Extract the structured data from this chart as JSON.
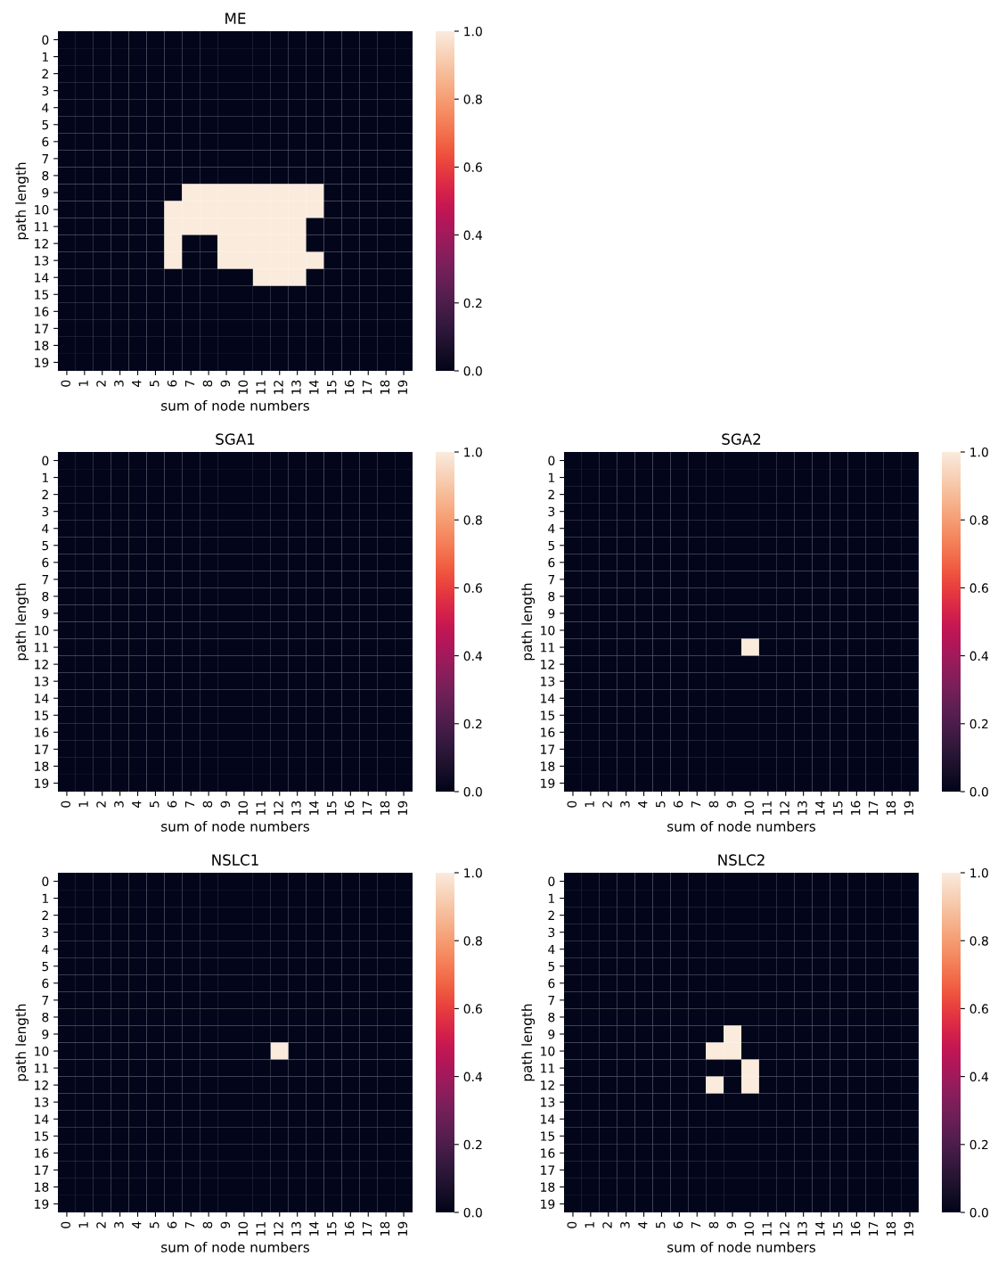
{
  "chart_data": [
    {
      "type": "heatmap",
      "title": "ME",
      "xlabel": "sum of node numbers",
      "ylabel": "path length",
      "categories": [
        "0",
        "1",
        "2",
        "3",
        "4",
        "5",
        "6",
        "7",
        "8",
        "9",
        "10",
        "11",
        "12",
        "13",
        "14",
        "15",
        "16",
        "17",
        "18",
        "19"
      ],
      "y_categories": [
        "0",
        "1",
        "2",
        "3",
        "4",
        "5",
        "6",
        "7",
        "8",
        "9",
        "10",
        "11",
        "12",
        "13",
        "14",
        "15",
        "16",
        "17",
        "18",
        "19"
      ],
      "clim": [
        0,
        1
      ],
      "cticks": [
        {
          "value": 0,
          "label": "0.0"
        },
        {
          "value": 0.2,
          "label": "0.2"
        },
        {
          "value": 0.4,
          "label": "0.4"
        },
        {
          "value": 0.6,
          "label": "0.6"
        },
        {
          "value": 0.8,
          "label": "0.8"
        },
        {
          "value": 1,
          "label": "1.0"
        }
      ],
      "cells": [
        [
          0,
          0,
          0,
          0,
          0,
          0,
          0,
          0,
          0,
          0,
          0,
          0,
          0,
          0,
          0,
          0,
          0,
          0,
          0,
          0
        ],
        [
          0,
          0,
          0,
          0,
          0,
          0,
          0,
          0,
          0,
          0,
          0,
          0,
          0,
          0,
          0,
          0,
          0,
          0,
          0,
          0
        ],
        [
          0,
          0,
          0,
          0,
          0,
          0,
          0,
          0,
          0,
          0,
          0,
          0,
          0,
          0,
          0,
          0,
          0,
          0,
          0,
          0
        ],
        [
          0,
          0,
          0,
          0,
          0,
          0,
          0,
          0,
          0,
          0,
          0,
          0,
          0,
          0,
          0,
          0,
          0,
          0,
          0,
          0
        ],
        [
          0,
          0,
          0,
          0,
          0,
          0,
          0,
          0,
          0,
          0,
          0,
          0,
          0,
          0,
          0,
          0,
          0,
          0,
          0,
          0
        ],
        [
          0,
          0,
          0,
          0,
          0,
          0,
          0,
          0,
          0,
          0,
          0,
          0,
          0,
          0,
          0,
          0,
          0,
          0,
          0,
          0
        ],
        [
          0,
          0,
          0,
          0,
          0,
          0,
          0,
          0,
          0,
          0,
          0,
          0,
          0,
          0,
          0,
          0,
          0,
          0,
          0,
          0
        ],
        [
          0,
          0,
          0,
          0,
          0,
          0,
          0,
          0,
          0,
          0,
          0,
          0,
          0,
          0,
          0,
          0,
          0,
          0,
          0,
          0
        ],
        [
          0,
          0,
          0,
          0,
          0,
          0,
          0,
          0,
          0,
          0,
          0,
          0,
          0,
          0,
          0,
          0,
          0,
          0,
          0,
          0
        ],
        [
          0,
          0,
          0,
          0,
          0,
          0,
          0,
          1,
          1,
          1,
          1,
          1,
          1,
          1,
          1,
          0,
          0,
          0,
          0,
          0
        ],
        [
          0,
          0,
          0,
          0,
          0,
          0,
          1,
          1,
          1,
          1,
          1,
          1,
          1,
          1,
          1,
          0,
          0,
          0,
          0,
          0
        ],
        [
          0,
          0,
          0,
          0,
          0,
          0,
          1,
          1,
          1,
          1,
          1,
          1,
          1,
          1,
          0,
          0,
          0,
          0,
          0,
          0
        ],
        [
          0,
          0,
          0,
          0,
          0,
          0,
          1,
          0,
          0,
          1,
          1,
          1,
          1,
          1,
          0,
          0,
          0,
          0,
          0,
          0
        ],
        [
          0,
          0,
          0,
          0,
          0,
          0,
          1,
          0,
          0,
          1,
          1,
          1,
          1,
          1,
          1,
          0,
          0,
          0,
          0,
          0
        ],
        [
          0,
          0,
          0,
          0,
          0,
          0,
          0,
          0,
          0,
          0,
          0,
          1,
          1,
          1,
          0,
          0,
          0,
          0,
          0,
          0
        ],
        [
          0,
          0,
          0,
          0,
          0,
          0,
          0,
          0,
          0,
          0,
          0,
          0,
          0,
          0,
          0,
          0,
          0,
          0,
          0,
          0
        ],
        [
          0,
          0,
          0,
          0,
          0,
          0,
          0,
          0,
          0,
          0,
          0,
          0,
          0,
          0,
          0,
          0,
          0,
          0,
          0,
          0
        ],
        [
          0,
          0,
          0,
          0,
          0,
          0,
          0,
          0,
          0,
          0,
          0,
          0,
          0,
          0,
          0,
          0,
          0,
          0,
          0,
          0
        ],
        [
          0,
          0,
          0,
          0,
          0,
          0,
          0,
          0,
          0,
          0,
          0,
          0,
          0,
          0,
          0,
          0,
          0,
          0,
          0,
          0
        ],
        [
          0,
          0,
          0,
          0,
          0,
          0,
          0,
          0,
          0,
          0,
          0,
          0,
          0,
          0,
          0,
          0,
          0,
          0,
          0,
          0
        ]
      ]
    },
    {
      "type": "heatmap",
      "title": "SGA1",
      "xlabel": "sum of node numbers",
      "ylabel": "path length",
      "categories": [
        "0",
        "1",
        "2",
        "3",
        "4",
        "5",
        "6",
        "7",
        "8",
        "9",
        "10",
        "11",
        "12",
        "13",
        "14",
        "15",
        "16",
        "17",
        "18",
        "19"
      ],
      "y_categories": [
        "0",
        "1",
        "2",
        "3",
        "4",
        "5",
        "6",
        "7",
        "8",
        "9",
        "10",
        "11",
        "12",
        "13",
        "14",
        "15",
        "16",
        "17",
        "18",
        "19"
      ],
      "clim": [
        0,
        1
      ],
      "cticks": [
        {
          "value": 0,
          "label": "0.0"
        },
        {
          "value": 0.2,
          "label": "0.2"
        },
        {
          "value": 0.4,
          "label": "0.4"
        },
        {
          "value": 0.6,
          "label": "0.6"
        },
        {
          "value": 0.8,
          "label": "0.8"
        },
        {
          "value": 1,
          "label": "1.0"
        }
      ],
      "cells": [
        [
          0,
          0,
          0,
          0,
          0,
          0,
          0,
          0,
          0,
          0,
          0,
          0,
          0,
          0,
          0,
          0,
          0,
          0,
          0,
          0
        ],
        [
          0,
          0,
          0,
          0,
          0,
          0,
          0,
          0,
          0,
          0,
          0,
          0,
          0,
          0,
          0,
          0,
          0,
          0,
          0,
          0
        ],
        [
          0,
          0,
          0,
          0,
          0,
          0,
          0,
          0,
          0,
          0,
          0,
          0,
          0,
          0,
          0,
          0,
          0,
          0,
          0,
          0
        ],
        [
          0,
          0,
          0,
          0,
          0,
          0,
          0,
          0,
          0,
          0,
          0,
          0,
          0,
          0,
          0,
          0,
          0,
          0,
          0,
          0
        ],
        [
          0,
          0,
          0,
          0,
          0,
          0,
          0,
          0,
          0,
          0,
          0,
          0,
          0,
          0,
          0,
          0,
          0,
          0,
          0,
          0
        ],
        [
          0,
          0,
          0,
          0,
          0,
          0,
          0,
          0,
          0,
          0,
          0,
          0,
          0,
          0,
          0,
          0,
          0,
          0,
          0,
          0
        ],
        [
          0,
          0,
          0,
          0,
          0,
          0,
          0,
          0,
          0,
          0,
          0,
          0,
          0,
          0,
          0,
          0,
          0,
          0,
          0,
          0
        ],
        [
          0,
          0,
          0,
          0,
          0,
          0,
          0,
          0,
          0,
          0,
          0,
          0,
          0,
          0,
          0,
          0,
          0,
          0,
          0,
          0
        ],
        [
          0,
          0,
          0,
          0,
          0,
          0,
          0,
          0,
          0,
          0,
          0,
          0,
          0,
          0,
          0,
          0,
          0,
          0,
          0,
          0
        ],
        [
          0,
          0,
          0,
          0,
          0,
          0,
          0,
          0,
          0,
          0,
          0,
          0,
          0,
          0,
          0,
          0,
          0,
          0,
          0,
          0
        ],
        [
          0,
          0,
          0,
          0,
          0,
          0,
          0,
          0,
          0,
          0,
          0,
          0,
          0,
          0,
          0,
          0,
          0,
          0,
          0,
          0
        ],
        [
          0,
          0,
          0,
          0,
          0,
          0,
          0,
          0,
          0,
          0,
          0,
          0,
          0,
          0,
          0,
          0,
          0,
          0,
          0,
          0
        ],
        [
          0,
          0,
          0,
          0,
          0,
          0,
          0,
          0,
          0,
          0,
          0,
          0,
          0,
          0,
          0,
          0,
          0,
          0,
          0,
          0
        ],
        [
          0,
          0,
          0,
          0,
          0,
          0,
          0,
          0,
          0,
          0,
          0,
          0,
          0,
          0,
          0,
          0,
          0,
          0,
          0,
          0
        ],
        [
          0,
          0,
          0,
          0,
          0,
          0,
          0,
          0,
          0,
          0,
          0,
          0,
          0,
          0,
          0,
          0,
          0,
          0,
          0,
          0
        ],
        [
          0,
          0,
          0,
          0,
          0,
          0,
          0,
          0,
          0,
          0,
          0,
          0,
          0,
          0,
          0,
          0,
          0,
          0,
          0,
          0
        ],
        [
          0,
          0,
          0,
          0,
          0,
          0,
          0,
          0,
          0,
          0,
          0,
          0,
          0,
          0,
          0,
          0,
          0,
          0,
          0,
          0
        ],
        [
          0,
          0,
          0,
          0,
          0,
          0,
          0,
          0,
          0,
          0,
          0,
          0,
          0,
          0,
          0,
          0,
          0,
          0,
          0,
          0
        ],
        [
          0,
          0,
          0,
          0,
          0,
          0,
          0,
          0,
          0,
          0,
          0,
          0,
          0,
          0,
          0,
          0,
          0,
          0,
          0,
          0
        ],
        [
          0,
          0,
          0,
          0,
          0,
          0,
          0,
          0,
          0,
          0,
          0,
          0,
          0,
          0,
          0,
          0,
          0,
          0,
          0,
          0
        ]
      ]
    },
    {
      "type": "heatmap",
      "title": "SGA2",
      "xlabel": "sum of node numbers",
      "ylabel": "path length",
      "categories": [
        "0",
        "1",
        "2",
        "3",
        "4",
        "5",
        "6",
        "7",
        "8",
        "9",
        "10",
        "11",
        "12",
        "13",
        "14",
        "15",
        "16",
        "17",
        "18",
        "19"
      ],
      "y_categories": [
        "0",
        "1",
        "2",
        "3",
        "4",
        "5",
        "6",
        "7",
        "8",
        "9",
        "10",
        "11",
        "12",
        "13",
        "14",
        "15",
        "16",
        "17",
        "18",
        "19"
      ],
      "clim": [
        0,
        1
      ],
      "cticks": [
        {
          "value": 0,
          "label": "0.0"
        },
        {
          "value": 0.2,
          "label": "0.2"
        },
        {
          "value": 0.4,
          "label": "0.4"
        },
        {
          "value": 0.6,
          "label": "0.6"
        },
        {
          "value": 0.8,
          "label": "0.8"
        },
        {
          "value": 1,
          "label": "1.0"
        }
      ],
      "cells": [
        [
          0,
          0,
          0,
          0,
          0,
          0,
          0,
          0,
          0,
          0,
          0,
          0,
          0,
          0,
          0,
          0,
          0,
          0,
          0,
          0
        ],
        [
          0,
          0,
          0,
          0,
          0,
          0,
          0,
          0,
          0,
          0,
          0,
          0,
          0,
          0,
          0,
          0,
          0,
          0,
          0,
          0
        ],
        [
          0,
          0,
          0,
          0,
          0,
          0,
          0,
          0,
          0,
          0,
          0,
          0,
          0,
          0,
          0,
          0,
          0,
          0,
          0,
          0
        ],
        [
          0,
          0,
          0,
          0,
          0,
          0,
          0,
          0,
          0,
          0,
          0,
          0,
          0,
          0,
          0,
          0,
          0,
          0,
          0,
          0
        ],
        [
          0,
          0,
          0,
          0,
          0,
          0,
          0,
          0,
          0,
          0,
          0,
          0,
          0,
          0,
          0,
          0,
          0,
          0,
          0,
          0
        ],
        [
          0,
          0,
          0,
          0,
          0,
          0,
          0,
          0,
          0,
          0,
          0,
          0,
          0,
          0,
          0,
          0,
          0,
          0,
          0,
          0
        ],
        [
          0,
          0,
          0,
          0,
          0,
          0,
          0,
          0,
          0,
          0,
          0,
          0,
          0,
          0,
          0,
          0,
          0,
          0,
          0,
          0
        ],
        [
          0,
          0,
          0,
          0,
          0,
          0,
          0,
          0,
          0,
          0,
          0,
          0,
          0,
          0,
          0,
          0,
          0,
          0,
          0,
          0
        ],
        [
          0,
          0,
          0,
          0,
          0,
          0,
          0,
          0,
          0,
          0,
          0,
          0,
          0,
          0,
          0,
          0,
          0,
          0,
          0,
          0
        ],
        [
          0,
          0,
          0,
          0,
          0,
          0,
          0,
          0,
          0,
          0,
          0,
          0,
          0,
          0,
          0,
          0,
          0,
          0,
          0,
          0
        ],
        [
          0,
          0,
          0,
          0,
          0,
          0,
          0,
          0,
          0,
          0,
          0,
          0,
          0,
          0,
          0,
          0,
          0,
          0,
          0,
          0
        ],
        [
          0,
          0,
          0,
          0,
          0,
          0,
          0,
          0,
          0,
          0,
          1,
          0,
          0,
          0,
          0,
          0,
          0,
          0,
          0,
          0
        ],
        [
          0,
          0,
          0,
          0,
          0,
          0,
          0,
          0,
          0,
          0,
          0,
          0,
          0,
          0,
          0,
          0,
          0,
          0,
          0,
          0
        ],
        [
          0,
          0,
          0,
          0,
          0,
          0,
          0,
          0,
          0,
          0,
          0,
          0,
          0,
          0,
          0,
          0,
          0,
          0,
          0,
          0
        ],
        [
          0,
          0,
          0,
          0,
          0,
          0,
          0,
          0,
          0,
          0,
          0,
          0,
          0,
          0,
          0,
          0,
          0,
          0,
          0,
          0
        ],
        [
          0,
          0,
          0,
          0,
          0,
          0,
          0,
          0,
          0,
          0,
          0,
          0,
          0,
          0,
          0,
          0,
          0,
          0,
          0,
          0
        ],
        [
          0,
          0,
          0,
          0,
          0,
          0,
          0,
          0,
          0,
          0,
          0,
          0,
          0,
          0,
          0,
          0,
          0,
          0,
          0,
          0
        ],
        [
          0,
          0,
          0,
          0,
          0,
          0,
          0,
          0,
          0,
          0,
          0,
          0,
          0,
          0,
          0,
          0,
          0,
          0,
          0,
          0
        ],
        [
          0,
          0,
          0,
          0,
          0,
          0,
          0,
          0,
          0,
          0,
          0,
          0,
          0,
          0,
          0,
          0,
          0,
          0,
          0,
          0
        ],
        [
          0,
          0,
          0,
          0,
          0,
          0,
          0,
          0,
          0,
          0,
          0,
          0,
          0,
          0,
          0,
          0,
          0,
          0,
          0,
          0
        ]
      ]
    },
    {
      "type": "heatmap",
      "title": "NSLC1",
      "xlabel": "sum of node numbers",
      "ylabel": "path length",
      "categories": [
        "0",
        "1",
        "2",
        "3",
        "4",
        "5",
        "6",
        "7",
        "8",
        "9",
        "10",
        "11",
        "12",
        "13",
        "14",
        "15",
        "16",
        "17",
        "18",
        "19"
      ],
      "y_categories": [
        "0",
        "1",
        "2",
        "3",
        "4",
        "5",
        "6",
        "7",
        "8",
        "9",
        "10",
        "11",
        "12",
        "13",
        "14",
        "15",
        "16",
        "17",
        "18",
        "19"
      ],
      "clim": [
        0,
        1
      ],
      "cticks": [
        {
          "value": 0,
          "label": "0.0"
        },
        {
          "value": 0.2,
          "label": "0.2"
        },
        {
          "value": 0.4,
          "label": "0.4"
        },
        {
          "value": 0.6,
          "label": "0.6"
        },
        {
          "value": 0.8,
          "label": "0.8"
        },
        {
          "value": 1,
          "label": "1.0"
        }
      ],
      "cells": [
        [
          0,
          0,
          0,
          0,
          0,
          0,
          0,
          0,
          0,
          0,
          0,
          0,
          0,
          0,
          0,
          0,
          0,
          0,
          0,
          0
        ],
        [
          0,
          0,
          0,
          0,
          0,
          0,
          0,
          0,
          0,
          0,
          0,
          0,
          0,
          0,
          0,
          0,
          0,
          0,
          0,
          0
        ],
        [
          0,
          0,
          0,
          0,
          0,
          0,
          0,
          0,
          0,
          0,
          0,
          0,
          0,
          0,
          0,
          0,
          0,
          0,
          0,
          0
        ],
        [
          0,
          0,
          0,
          0,
          0,
          0,
          0,
          0,
          0,
          0,
          0,
          0,
          0,
          0,
          0,
          0,
          0,
          0,
          0,
          0
        ],
        [
          0,
          0,
          0,
          0,
          0,
          0,
          0,
          0,
          0,
          0,
          0,
          0,
          0,
          0,
          0,
          0,
          0,
          0,
          0,
          0
        ],
        [
          0,
          0,
          0,
          0,
          0,
          0,
          0,
          0,
          0,
          0,
          0,
          0,
          0,
          0,
          0,
          0,
          0,
          0,
          0,
          0
        ],
        [
          0,
          0,
          0,
          0,
          0,
          0,
          0,
          0,
          0,
          0,
          0,
          0,
          0,
          0,
          0,
          0,
          0,
          0,
          0,
          0
        ],
        [
          0,
          0,
          0,
          0,
          0,
          0,
          0,
          0,
          0,
          0,
          0,
          0,
          0,
          0,
          0,
          0,
          0,
          0,
          0,
          0
        ],
        [
          0,
          0,
          0,
          0,
          0,
          0,
          0,
          0,
          0,
          0,
          0,
          0,
          0,
          0,
          0,
          0,
          0,
          0,
          0,
          0
        ],
        [
          0,
          0,
          0,
          0,
          0,
          0,
          0,
          0,
          0,
          0,
          0,
          0,
          0,
          0,
          0,
          0,
          0,
          0,
          0,
          0
        ],
        [
          0,
          0,
          0,
          0,
          0,
          0,
          0,
          0,
          0,
          0,
          0,
          0,
          1,
          0,
          0,
          0,
          0,
          0,
          0,
          0
        ],
        [
          0,
          0,
          0,
          0,
          0,
          0,
          0,
          0,
          0,
          0,
          0,
          0,
          0,
          0,
          0,
          0,
          0,
          0,
          0,
          0
        ],
        [
          0,
          0,
          0,
          0,
          0,
          0,
          0,
          0,
          0,
          0,
          0,
          0,
          0,
          0,
          0,
          0,
          0,
          0,
          0,
          0
        ],
        [
          0,
          0,
          0,
          0,
          0,
          0,
          0,
          0,
          0,
          0,
          0,
          0,
          0,
          0,
          0,
          0,
          0,
          0,
          0,
          0
        ],
        [
          0,
          0,
          0,
          0,
          0,
          0,
          0,
          0,
          0,
          0,
          0,
          0,
          0,
          0,
          0,
          0,
          0,
          0,
          0,
          0
        ],
        [
          0,
          0,
          0,
          0,
          0,
          0,
          0,
          0,
          0,
          0,
          0,
          0,
          0,
          0,
          0,
          0,
          0,
          0,
          0,
          0
        ],
        [
          0,
          0,
          0,
          0,
          0,
          0,
          0,
          0,
          0,
          0,
          0,
          0,
          0,
          0,
          0,
          0,
          0,
          0,
          0,
          0
        ],
        [
          0,
          0,
          0,
          0,
          0,
          0,
          0,
          0,
          0,
          0,
          0,
          0,
          0,
          0,
          0,
          0,
          0,
          0,
          0,
          0
        ],
        [
          0,
          0,
          0,
          0,
          0,
          0,
          0,
          0,
          0,
          0,
          0,
          0,
          0,
          0,
          0,
          0,
          0,
          0,
          0,
          0
        ],
        [
          0,
          0,
          0,
          0,
          0,
          0,
          0,
          0,
          0,
          0,
          0,
          0,
          0,
          0,
          0,
          0,
          0,
          0,
          0,
          0
        ]
      ]
    },
    {
      "type": "heatmap",
      "title": "NSLC2",
      "xlabel": "sum of node numbers",
      "ylabel": "path length",
      "categories": [
        "0",
        "1",
        "2",
        "3",
        "4",
        "5",
        "6",
        "7",
        "8",
        "9",
        "10",
        "11",
        "12",
        "13",
        "14",
        "15",
        "16",
        "17",
        "18",
        "19"
      ],
      "y_categories": [
        "0",
        "1",
        "2",
        "3",
        "4",
        "5",
        "6",
        "7",
        "8",
        "9",
        "10",
        "11",
        "12",
        "13",
        "14",
        "15",
        "16",
        "17",
        "18",
        "19"
      ],
      "clim": [
        0,
        1
      ],
      "cticks": [
        {
          "value": 0,
          "label": "0.0"
        },
        {
          "value": 0.2,
          "label": "0.2"
        },
        {
          "value": 0.4,
          "label": "0.4"
        },
        {
          "value": 0.6,
          "label": "0.6"
        },
        {
          "value": 0.8,
          "label": "0.8"
        },
        {
          "value": 1,
          "label": "1.0"
        }
      ],
      "cells": [
        [
          0,
          0,
          0,
          0,
          0,
          0,
          0,
          0,
          0,
          0,
          0,
          0,
          0,
          0,
          0,
          0,
          0,
          0,
          0,
          0
        ],
        [
          0,
          0,
          0,
          0,
          0,
          0,
          0,
          0,
          0,
          0,
          0,
          0,
          0,
          0,
          0,
          0,
          0,
          0,
          0,
          0
        ],
        [
          0,
          0,
          0,
          0,
          0,
          0,
          0,
          0,
          0,
          0,
          0,
          0,
          0,
          0,
          0,
          0,
          0,
          0,
          0,
          0
        ],
        [
          0,
          0,
          0,
          0,
          0,
          0,
          0,
          0,
          0,
          0,
          0,
          0,
          0,
          0,
          0,
          0,
          0,
          0,
          0,
          0
        ],
        [
          0,
          0,
          0,
          0,
          0,
          0,
          0,
          0,
          0,
          0,
          0,
          0,
          0,
          0,
          0,
          0,
          0,
          0,
          0,
          0
        ],
        [
          0,
          0,
          0,
          0,
          0,
          0,
          0,
          0,
          0,
          0,
          0,
          0,
          0,
          0,
          0,
          0,
          0,
          0,
          0,
          0
        ],
        [
          0,
          0,
          0,
          0,
          0,
          0,
          0,
          0,
          0,
          0,
          0,
          0,
          0,
          0,
          0,
          0,
          0,
          0,
          0,
          0
        ],
        [
          0,
          0,
          0,
          0,
          0,
          0,
          0,
          0,
          0,
          0,
          0,
          0,
          0,
          0,
          0,
          0,
          0,
          0,
          0,
          0
        ],
        [
          0,
          0,
          0,
          0,
          0,
          0,
          0,
          0,
          0,
          0,
          0,
          0,
          0,
          0,
          0,
          0,
          0,
          0,
          0,
          0
        ],
        [
          0,
          0,
          0,
          0,
          0,
          0,
          0,
          0,
          0,
          1,
          0,
          0,
          0,
          0,
          0,
          0,
          0,
          0,
          0,
          0
        ],
        [
          0,
          0,
          0,
          0,
          0,
          0,
          0,
          0,
          1,
          1,
          0,
          0,
          0,
          0,
          0,
          0,
          0,
          0,
          0,
          0
        ],
        [
          0,
          0,
          0,
          0,
          0,
          0,
          0,
          0,
          0,
          0,
          1,
          0,
          0,
          0,
          0,
          0,
          0,
          0,
          0,
          0
        ],
        [
          0,
          0,
          0,
          0,
          0,
          0,
          0,
          0,
          1,
          0,
          1,
          0,
          0,
          0,
          0,
          0,
          0,
          0,
          0,
          0
        ],
        [
          0,
          0,
          0,
          0,
          0,
          0,
          0,
          0,
          0,
          0,
          0,
          0,
          0,
          0,
          0,
          0,
          0,
          0,
          0,
          0
        ],
        [
          0,
          0,
          0,
          0,
          0,
          0,
          0,
          0,
          0,
          0,
          0,
          0,
          0,
          0,
          0,
          0,
          0,
          0,
          0,
          0
        ],
        [
          0,
          0,
          0,
          0,
          0,
          0,
          0,
          0,
          0,
          0,
          0,
          0,
          0,
          0,
          0,
          0,
          0,
          0,
          0,
          0
        ],
        [
          0,
          0,
          0,
          0,
          0,
          0,
          0,
          0,
          0,
          0,
          0,
          0,
          0,
          0,
          0,
          0,
          0,
          0,
          0,
          0
        ],
        [
          0,
          0,
          0,
          0,
          0,
          0,
          0,
          0,
          0,
          0,
          0,
          0,
          0,
          0,
          0,
          0,
          0,
          0,
          0,
          0
        ],
        [
          0,
          0,
          0,
          0,
          0,
          0,
          0,
          0,
          0,
          0,
          0,
          0,
          0,
          0,
          0,
          0,
          0,
          0,
          0,
          0
        ],
        [
          0,
          0,
          0,
          0,
          0,
          0,
          0,
          0,
          0,
          0,
          0,
          0,
          0,
          0,
          0,
          0,
          0,
          0,
          0,
          0
        ]
      ]
    }
  ]
}
